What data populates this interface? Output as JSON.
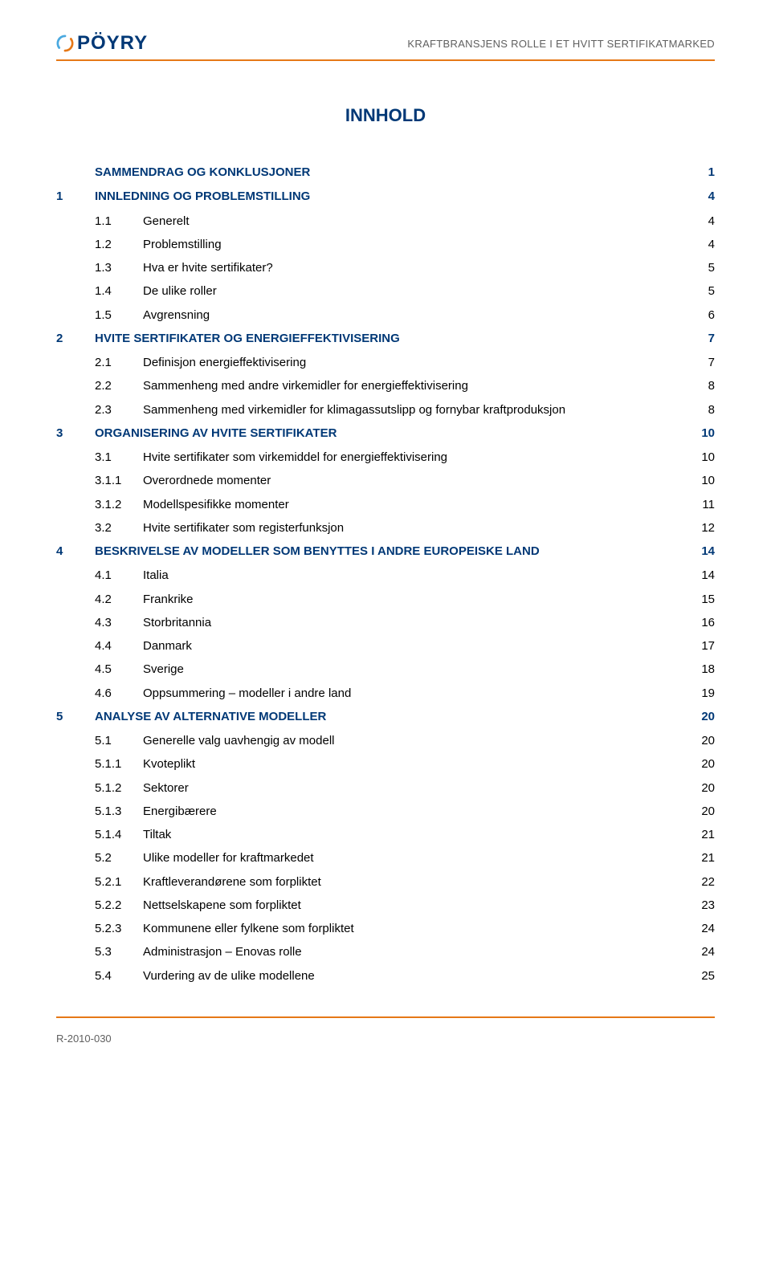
{
  "header": {
    "logo_text": "PÖYRY",
    "title": "KRAFTBRANSJENS ROLLE I ET HVITT SERTIFIKATMARKED"
  },
  "doc_title": "INNHOLD",
  "colors": {
    "accent": "#003876",
    "divider": "#e67817",
    "gray": "#606060",
    "text": "#000000"
  },
  "toc": [
    {
      "level": 0,
      "num": "",
      "label": "SAMMENDRAG OG KONKLUSJONER",
      "page": "1",
      "heading": true,
      "no_num": true
    },
    {
      "level": 0,
      "num": "1",
      "label": "INNLEDNING OG PROBLEMSTILLING",
      "page": "4",
      "heading": true
    },
    {
      "level": 1,
      "num": "1.1",
      "label": "Generelt",
      "page": "4"
    },
    {
      "level": 1,
      "num": "1.2",
      "label": "Problemstilling",
      "page": "4"
    },
    {
      "level": 1,
      "num": "1.3",
      "label": "Hva er hvite sertifikater?",
      "page": "5"
    },
    {
      "level": 1,
      "num": "1.4",
      "label": "De ulike roller",
      "page": "5"
    },
    {
      "level": 1,
      "num": "1.5",
      "label": "Avgrensning",
      "page": "6"
    },
    {
      "level": 0,
      "num": "2",
      "label": "HVITE SERTIFIKATER OG ENERGIEFFEKTIVISERING",
      "page": "7",
      "heading": true
    },
    {
      "level": 1,
      "num": "2.1",
      "label": "Definisjon energieffektivisering",
      "page": "7"
    },
    {
      "level": 1,
      "num": "2.2",
      "label": "Sammenheng med andre virkemidler for energieffektivisering",
      "page": "8"
    },
    {
      "level": 1,
      "num": "2.3",
      "label": "Sammenheng med virkemidler for klimagassutslipp og fornybar kraftproduksjon",
      "page": "8"
    },
    {
      "level": 0,
      "num": "3",
      "label": "ORGANISERING AV HVITE SERTIFIKATER",
      "page": "10",
      "heading": true
    },
    {
      "level": 1,
      "num": "3.1",
      "label": "Hvite sertifikater som virkemiddel for energieffektivisering",
      "page": "10"
    },
    {
      "level": 2,
      "num": "3.1.1",
      "label": "Overordnede momenter",
      "page": "10"
    },
    {
      "level": 2,
      "num": "3.1.2",
      "label": "Modellspesifikke momenter",
      "page": "11"
    },
    {
      "level": 1,
      "num": "3.2",
      "label": "Hvite sertifikater som registerfunksjon",
      "page": "12"
    },
    {
      "level": 0,
      "num": "4",
      "label": "BESKRIVELSE AV MODELLER SOM BENYTTES I ANDRE EUROPEISKE LAND",
      "page": "14",
      "heading": true
    },
    {
      "level": 1,
      "num": "4.1",
      "label": "Italia",
      "page": "14"
    },
    {
      "level": 1,
      "num": "4.2",
      "label": "Frankrike",
      "page": "15"
    },
    {
      "level": 1,
      "num": "4.3",
      "label": "Storbritannia",
      "page": "16"
    },
    {
      "level": 1,
      "num": "4.4",
      "label": "Danmark",
      "page": "17"
    },
    {
      "level": 1,
      "num": "4.5",
      "label": "Sverige",
      "page": "18"
    },
    {
      "level": 1,
      "num": "4.6",
      "label": "Oppsummering – modeller i andre land",
      "page": "19"
    },
    {
      "level": 0,
      "num": "5",
      "label": "ANALYSE AV ALTERNATIVE MODELLER",
      "page": "20",
      "heading": true
    },
    {
      "level": 1,
      "num": "5.1",
      "label": "Generelle valg uavhengig av modell",
      "page": "20"
    },
    {
      "level": 2,
      "num": "5.1.1",
      "label": "Kvoteplikt",
      "page": "20"
    },
    {
      "level": 2,
      "num": "5.1.2",
      "label": "Sektorer",
      "page": "20"
    },
    {
      "level": 2,
      "num": "5.1.3",
      "label": "Energibærere",
      "page": "20"
    },
    {
      "level": 2,
      "num": "5.1.4",
      "label": "Tiltak",
      "page": "21"
    },
    {
      "level": 1,
      "num": "5.2",
      "label": "Ulike modeller for kraftmarkedet",
      "page": "21"
    },
    {
      "level": 2,
      "num": "5.2.1",
      "label": "Kraftleverandørene som forpliktet",
      "page": "22"
    },
    {
      "level": 2,
      "num": "5.2.2",
      "label": "Nettselskapene som forpliktet",
      "page": "23"
    },
    {
      "level": 2,
      "num": "5.2.3",
      "label": "Kommunene eller fylkene som forpliktet",
      "page": "24"
    },
    {
      "level": 1,
      "num": "5.3",
      "label": "Administrasjon – Enovas rolle",
      "page": "24"
    },
    {
      "level": 1,
      "num": "5.4",
      "label": "Vurdering av de ulike modellene",
      "page": "25"
    }
  ],
  "footer": {
    "ref": "R-2010-030"
  }
}
